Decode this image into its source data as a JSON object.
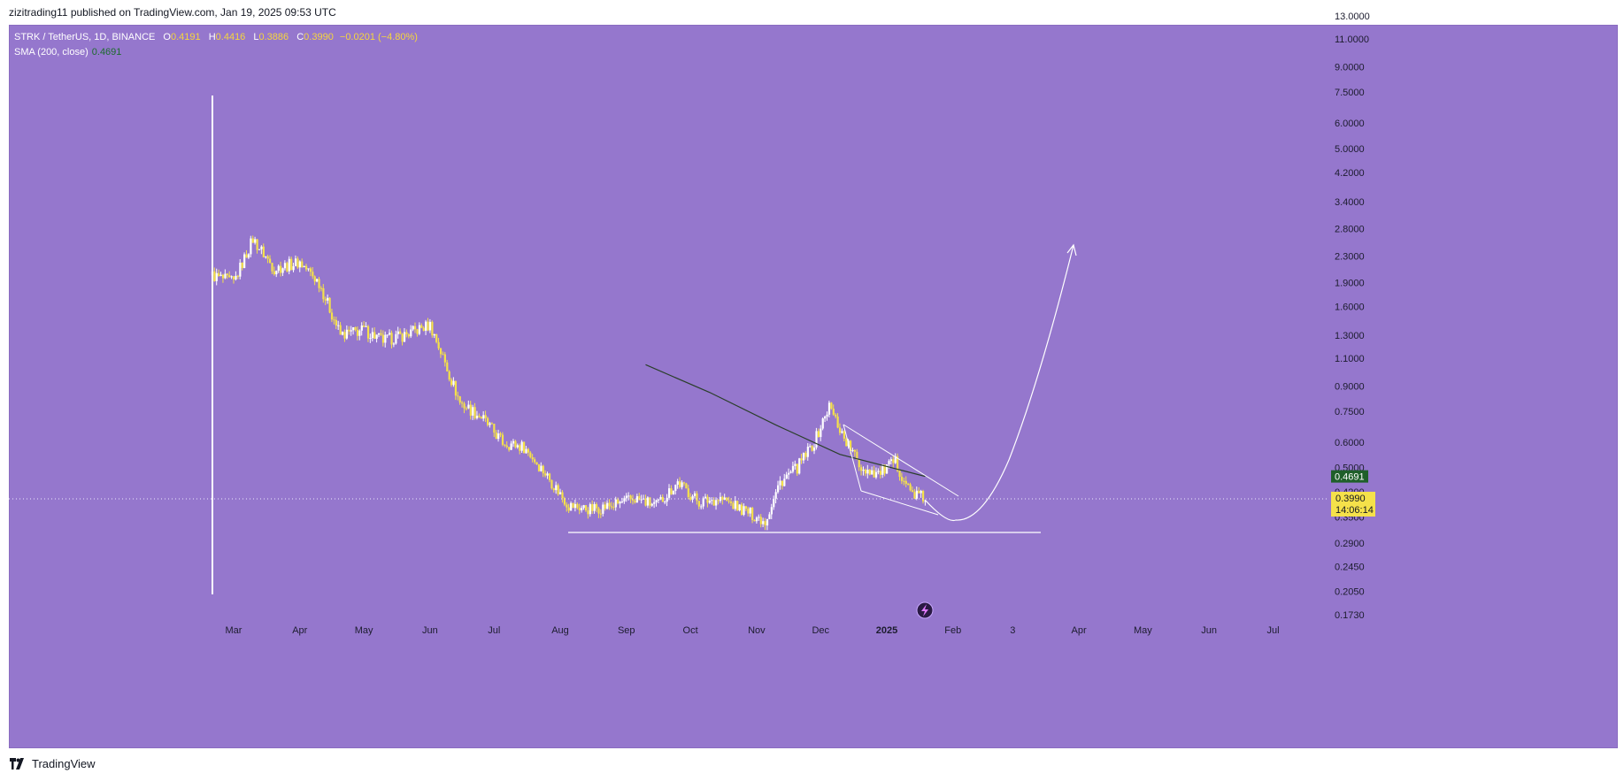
{
  "header": {
    "publisher": "zizitrading11 published on TradingView.com, Jan 19, 2025 09:53 UTC"
  },
  "legend": {
    "symbol": "STRK / TetherUS, 1D, BINANCE",
    "o_label": "O",
    "o_value": "0.4191",
    "h_label": "H",
    "h_value": "0.4416",
    "l_label": "L",
    "l_value": "0.3886",
    "c_label": "C",
    "c_value": "0.3990",
    "change": "−0.0201 (−4.80%)",
    "sma_label": "SMA (200, close)",
    "sma_value": "0.4691"
  },
  "footer": {
    "brand": "TradingView"
  },
  "colors": {
    "background": "#9577cd",
    "candle_up": "#ffffff",
    "candle_down": "#f5e14a",
    "sma_line": "#2a3f2a",
    "sma_badge": "#1f5f2a",
    "price_badge": "#f5e14a",
    "drawing": "#ffffff"
  },
  "chart_data": {
    "type": "candlestick",
    "scale": "log",
    "price_axis_ticks": [
      "13.0000",
      "11.0000",
      "9.0000",
      "7.5000",
      "6.0000",
      "5.0000",
      "4.2000",
      "3.4000",
      "2.8000",
      "2.3000",
      "1.9000",
      "1.6000",
      "1.3000",
      "1.1000",
      "0.9000",
      "0.7500",
      "0.6000",
      "0.5000",
      "0.4200",
      "0.3500",
      "0.2900",
      "0.2450",
      "0.2050",
      "0.1730"
    ],
    "time_axis_ticks": [
      "Mar",
      "Apr",
      "May",
      "Jun",
      "Jul",
      "Aug",
      "Sep",
      "Oct",
      "Nov",
      "Dec",
      "2025",
      "Feb",
      "3",
      "Apr",
      "May",
      "Jun",
      "Jul"
    ],
    "ylim": [
      0.16,
      14.0
    ],
    "series": [
      {
        "name": "STRK / TetherUS",
        "x": [
          "2024-02-20",
          "2024-03-01",
          "2024-03-10",
          "2024-03-20",
          "2024-04-01",
          "2024-04-10",
          "2024-04-20",
          "2024-05-01",
          "2024-05-10",
          "2024-05-20",
          "2024-06-01",
          "2024-06-05",
          "2024-06-15",
          "2024-06-25",
          "2024-07-05",
          "2024-07-15",
          "2024-07-25",
          "2024-08-05",
          "2024-08-15",
          "2024-08-25",
          "2024-09-05",
          "2024-09-15",
          "2024-09-25",
          "2024-10-05",
          "2024-10-15",
          "2024-10-25",
          "2024-11-05",
          "2024-11-12",
          "2024-11-20",
          "2024-11-28",
          "2024-12-05",
          "2024-12-12",
          "2024-12-20",
          "2024-12-28",
          "2025-01-05",
          "2025-01-12",
          "2025-01-19"
        ],
        "values": [
          2.0,
          1.9,
          2.6,
          2.1,
          2.2,
          1.9,
          1.3,
          1.35,
          1.25,
          1.3,
          1.4,
          1.2,
          0.8,
          0.72,
          0.6,
          0.58,
          0.48,
          0.38,
          0.37,
          0.38,
          0.4,
          0.38,
          0.45,
          0.39,
          0.4,
          0.37,
          0.34,
          0.45,
          0.5,
          0.6,
          0.78,
          0.62,
          0.5,
          0.48,
          0.52,
          0.42,
          0.399
        ]
      },
      {
        "name": "SMA (200, close)",
        "x": [
          "2024-09-10",
          "2024-10-10",
          "2024-11-10",
          "2024-12-10",
          "2025-01-19"
        ],
        "values": [
          1.05,
          0.86,
          0.68,
          0.55,
          0.4691
        ]
      }
    ],
    "last_price": "0.3990",
    "countdown": "14:06:14",
    "sma_last": "0.4691"
  }
}
